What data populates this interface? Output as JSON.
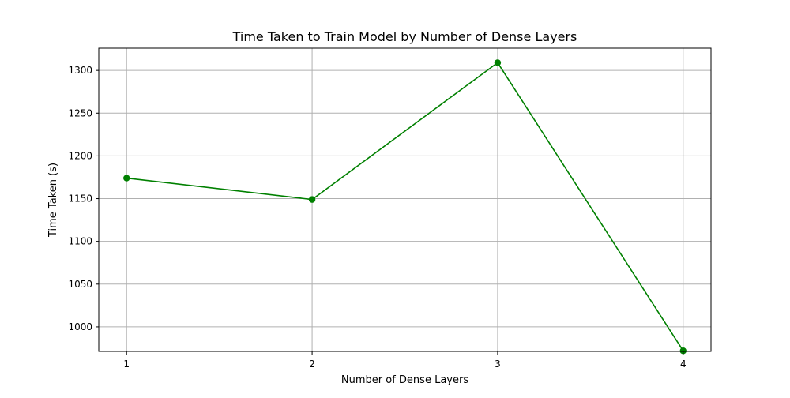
{
  "chart_data": {
    "type": "line",
    "title": "Time Taken to Train Model by Number of Dense Layers",
    "xlabel": "Number of Dense Layers",
    "ylabel": "Time Taken (s)",
    "x": [
      1,
      2,
      3,
      4
    ],
    "x_ticks": [
      "1",
      "2",
      "3",
      "4"
    ],
    "y_ticks": [
      "1000",
      "1050",
      "1100",
      "1150",
      "1200",
      "1250",
      "1300"
    ],
    "xlim": [
      0.85,
      4.15
    ],
    "ylim": [
      971.3,
      1326
    ],
    "grid": true,
    "series": [
      {
        "values": [
          1174,
          1149,
          1309,
          972
        ],
        "color": "#008000",
        "marker": "circle"
      }
    ]
  }
}
